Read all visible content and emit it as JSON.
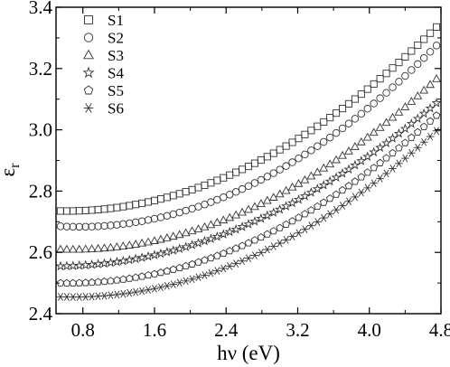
{
  "chart_data": {
    "type": "scatter",
    "xlabel": "hν (eV)",
    "ylabel": "ε",
    "ylabel_subscript": "r",
    "xlim": [
      0.5,
      4.8
    ],
    "ylim": [
      2.4,
      3.4
    ],
    "x_ticks": [
      0.8,
      1.6,
      2.4,
      3.2,
      4.0,
      4.8
    ],
    "x_tick_labels": [
      "0.8",
      "1.6",
      "2.4",
      "3.2",
      "4.0",
      "4.8"
    ],
    "y_ticks": [
      2.4,
      2.6,
      2.8,
      3.0,
      3.2,
      3.4
    ],
    "y_tick_labels": [
      "2.4",
      "2.6",
      "2.8",
      "3.0",
      "3.2",
      "3.4"
    ],
    "grid": false,
    "legend_position": "top-left",
    "x_start": 0.55,
    "x_step": 0.07,
    "series": [
      {
        "name": "S1",
        "marker": "square",
        "start": 2.735,
        "mid_x": 3.0,
        "mid_y": 2.935,
        "end": 3.35
      },
      {
        "name": "S2",
        "marker": "circle",
        "start": 2.685,
        "mid_x": 3.0,
        "mid_y": 2.87,
        "end": 3.29
      },
      {
        "name": "S3",
        "marker": "triangle",
        "start": 2.61,
        "mid_x": 3.0,
        "mid_y": 2.79,
        "end": 3.18
      },
      {
        "name": "S4",
        "marker": "star",
        "start": 2.555,
        "mid_x": 3.0,
        "mid_y": 2.74,
        "end": 3.1
      },
      {
        "name": "S5",
        "marker": "pentagon",
        "start": 2.5,
        "mid_x": 3.0,
        "mid_y": 2.68,
        "end": 3.06
      },
      {
        "name": "S6",
        "marker": "asterisk",
        "start": 2.455,
        "mid_x": 3.0,
        "mid_y": 2.63,
        "end": 3.01
      }
    ]
  }
}
